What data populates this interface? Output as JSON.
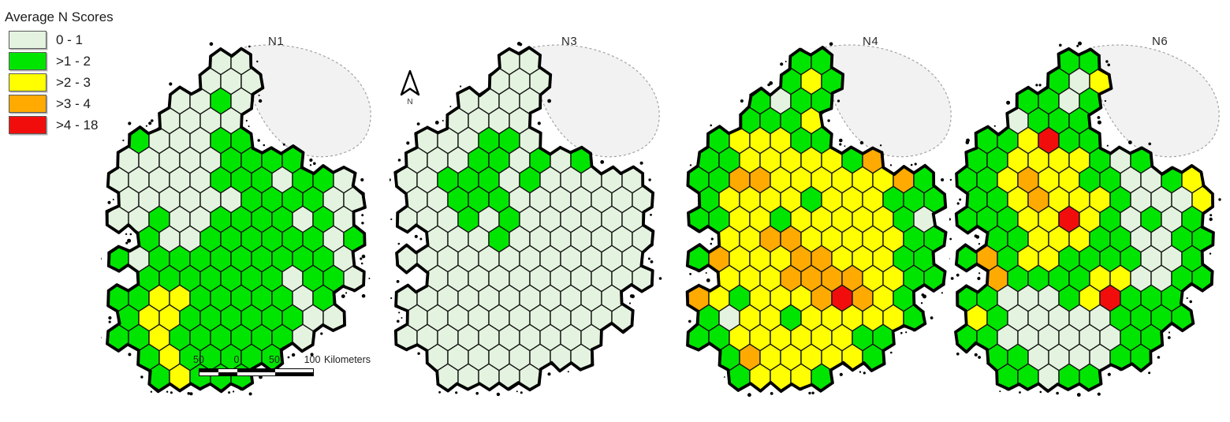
{
  "legend": {
    "title": "Average N Scores",
    "items": [
      {
        "label": "0 - 1",
        "color": "#E4F3DF"
      },
      {
        "label": ">1 - 2",
        "color": "#00E500"
      },
      {
        "label": ">2 - 3",
        "color": "#FFFF00"
      },
      {
        "label": ">3 - 4",
        "color": "#FFAA00"
      },
      {
        "label": ">4 - 18",
        "color": "#F20D0D"
      }
    ]
  },
  "north_arrow": {
    "label": "N"
  },
  "scale_bar": {
    "labels": [
      "50",
      "0",
      "50",
      "100"
    ],
    "unit": "Kilometers"
  },
  "map_style": {
    "sea": "#FFFFFF",
    "ni_fill": "#F2F2F2",
    "ni_border": "#9C9C9C",
    "coast": "#000000",
    "hex_border": "#141414"
  },
  "grid_encoding": {
    ".": "no cell",
    "a": "0 - 1",
    "b": ">1 - 2",
    "c": ">2 - 3",
    "d": ">3 - 4",
    "e": ">4 - 18"
  },
  "panels": [
    {
      "label": "N1",
      "grid": [
        ".....aa......",
        "....aaa......",
        "...aaba......",
        "..aaaa.......",
        ".baaabb......",
        "aaaaabbbb....",
        "aaaaabbbabba.",
        "aaaaaabbbbaa.",
        "aabaabbbbaba.",
        ".baabbbbbbab.",
        "babbbbbbbbba.",
        ".bbbbbbbabba.",
        "bbccbbbbbab..",
        "bccbbbbbbaa..",
        "bbcbbbbbba...",
        ".bcbbbbb....",
        "..bcbbb......"
      ]
    },
    {
      "label": "N3",
      "grid": [
        ".....aa......",
        "....aaa......",
        "...aaaa......",
        "..aaaa.......",
        ".aaabba......",
        "aaabbabab....",
        "aabbbabaaaaa.",
        "aabbbaaaaaaa.",
        "aaababaaaaaa.",
        ".aaabaaaaaaa.",
        "aaaaaaaaaaaa.",
        ".aaaaaaaaaaa.",
        "aaaaaaaaaaa..",
        "aaaaaaaaaaa..",
        "aaaaaaaaaa...",
        ".aaaaaaaa....",
        "..aaaaa......"
      ]
    },
    {
      "label": "N4",
      "grid": [
        ".....bb......",
        "....bcb......",
        "...babb......",
        "..bbbc.......",
        ".bcccbb......",
        "bbcccccbd....",
        "bbddccccccdb.",
        "bccccbcccbbb.",
        "bbccbcccccba.",
        ".ccddcccccbb.",
        "bdcccddcccbb.",
        ".cccddddccbb.",
        "dcbcccdedcb..",
        "baccbcccccb..",
        "bbccccccbb...",
        ".bdcccccb....",
        "..bcccb......"
      ]
    },
    {
      "label": "N6",
      "grid": [
        ".....bb......",
        "....bac......",
        "...bbab......",
        "..abbb.......",
        ".bbcebb......",
        "bbccccbab....",
        "bbcdccbbaabc.",
        "bbcdcccbaaac.",
        "bbbccecbabab.",
        ".bbcccbbaabb.",
        "bdbccbbbbaab.",
        ".dbbbbccaabb.",
        "bbaaabcebbb..",
        "cbaaaaabbbb..",
        "bbaaaaaabb...",
        ".bbaaaabb....",
        "..bbabb......"
      ]
    }
  ]
}
